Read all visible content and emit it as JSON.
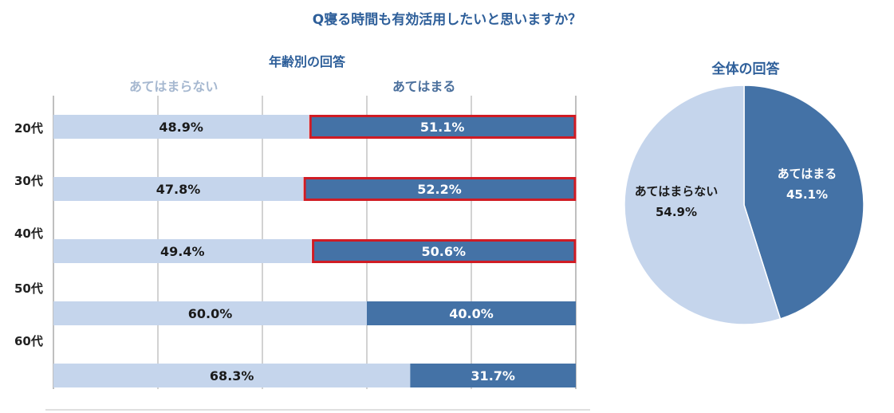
{
  "chart_data": [
    {
      "type": "bar",
      "orientation": "horizontal",
      "stacked": "percent",
      "title": "年齢別の回答",
      "categories": [
        "20代",
        "30代",
        "40代",
        "50代",
        "60代"
      ],
      "series": [
        {
          "name": "あてはまらない",
          "values": [
            48.9,
            47.8,
            49.4,
            60.0,
            68.3
          ],
          "labels": [
            "48.9%",
            "47.8%",
            "49.4%",
            "60.0%",
            "68.3%"
          ],
          "color": "#c5d5ec"
        },
        {
          "name": "あてはまる",
          "values": [
            51.1,
            52.2,
            50.6,
            40.0,
            31.7
          ],
          "labels": [
            "51.1%",
            "52.2%",
            "50.6%",
            "40.0%",
            "31.7%"
          ],
          "color": "#4472a6"
        }
      ],
      "highlighted": [
        true,
        true,
        true,
        false,
        false
      ],
      "highlight_color": "#d01c24",
      "xlim": [
        0,
        100
      ]
    },
    {
      "type": "pie",
      "title": "全体の回答",
      "slices": [
        {
          "name": "あてはまる",
          "value": 45.1,
          "label": "45.1%",
          "color": "#4472a6"
        },
        {
          "name": "あてはまらない",
          "value": 54.9,
          "label": "54.9%",
          "color": "#c5d5ec"
        }
      ]
    }
  ],
  "main_title": "Q寝る時間も有効活用したいと思いますか？",
  "colors": {
    "title": "#2e5f9a",
    "dark": "#4472a6",
    "light": "#c5d5ec",
    "grid": "#a6a6a6"
  }
}
